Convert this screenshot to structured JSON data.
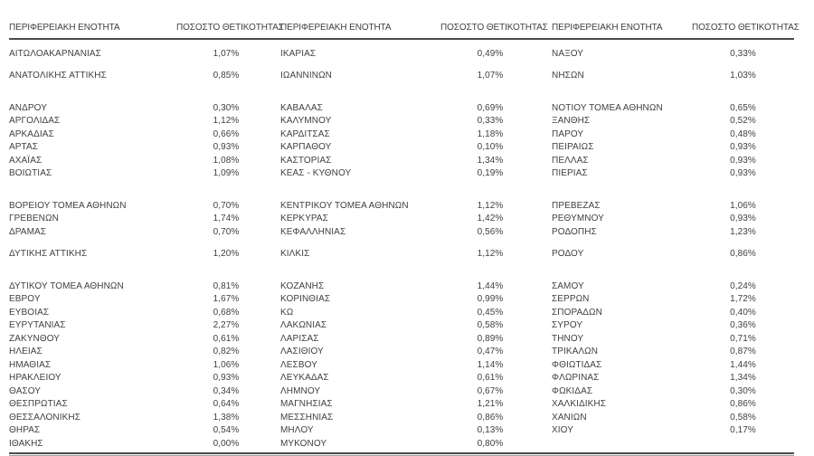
{
  "colors": {
    "text": "#3f3f3f",
    "rule_dark": "#4b4b4b",
    "rule_light": "#9e9e9e",
    "background": "#ffffff"
  },
  "table": {
    "headers": [
      "ΠΕΡΙΦΕΡΕΙΑΚΗ ΕΝΟΤΗΤΑ",
      "ΠΟΣΟΣΤΟ ΘΕΤΙΚΟΤΗΤΑΣ",
      "ΠΕΡΙΦΕΡΕΙΑΚΗ ΕΝΟΤΗΤΑ",
      "ΠΟΣΟΣΤΟ ΘΕΤΙΚΟΤΗΤΑΣ",
      "ΠΕΡΙΦΕΡΕΙΑΚΗ ΕΝΟΤΗΤΑ",
      "ΠΟΣΟΣΤΟ ΘΕΤΙΚΟΤΗΤΑΣ"
    ],
    "rows": [
      {
        "gap": 0,
        "cells": [
          "ΑΙΤΩΛΟΑΚΑΡΝΑΝΙΑΣ",
          "1,07%",
          "ΙΚΑΡΙΑΣ",
          "0,49%",
          "ΝΑΞΟΥ",
          "0,33%"
        ]
      },
      {
        "gap": 1,
        "cells": [
          "ΑΝΑΤΟΛΙΚΗΣ ΑΤΤΙΚΗΣ",
          "0,85%",
          "ΙΩΑΝΝΙΝΩΝ",
          "1,07%",
          "ΝΗΣΩΝ",
          "1,03%"
        ]
      },
      {
        "gap": 2,
        "cells": [
          "ΑΝΔΡΟΥ",
          "0,30%",
          "ΚΑΒΑΛΑΣ",
          "0,69%",
          "ΝΟΤΙΟΥ ΤΟΜΕΑ ΑΘΗΝΩΝ",
          "0,65%"
        ]
      },
      {
        "gap": 0,
        "cells": [
          "ΑΡΓΟΛΙΔΑΣ",
          "1,12%",
          "ΚΑΛΥΜΝΟΥ",
          "0,33%",
          "ΞΑΝΘΗΣ",
          "0,52%"
        ]
      },
      {
        "gap": 0,
        "cells": [
          "ΑΡΚΑΔΙΑΣ",
          "0,66%",
          "ΚΑΡΔΙΤΣΑΣ",
          "1,18%",
          "ΠΑΡΟΥ",
          "0,48%"
        ]
      },
      {
        "gap": 0,
        "cells": [
          "ΑΡΤΑΣ",
          "0,93%",
          "ΚΑΡΠΑΘΟΥ",
          "0,10%",
          "ΠΕΙΡΑΙΩΣ",
          "0,93%"
        ]
      },
      {
        "gap": 0,
        "cells": [
          "ΑΧΑΪΑΣ",
          "1,08%",
          "ΚΑΣΤΟΡΙΑΣ",
          "1,34%",
          "ΠΕΛΛΑΣ",
          "0,93%"
        ]
      },
      {
        "gap": 0,
        "cells": [
          "ΒΟΙΩΤΙΑΣ",
          "1,09%",
          "ΚΕΑΣ - ΚΥΘΝΟΥ",
          "0,19%",
          "ΠΙΕΡΙΑΣ",
          "0,93%"
        ]
      },
      {
        "gap": 2,
        "cells": [
          "ΒΟΡΕΙΟΥ ΤΟΜΕΑ ΑΘΗΝΩΝ",
          "0,70%",
          "ΚΕΝΤΡΙΚΟΥ ΤΟΜΕΑ ΑΘΗΝΩΝ",
          "1,12%",
          "ΠΡΕΒΕΖΑΣ",
          "1,06%"
        ]
      },
      {
        "gap": 0,
        "cells": [
          "ΓΡΕΒΕΝΩΝ",
          "1,74%",
          "ΚΕΡΚΥΡΑΣ",
          "1,42%",
          "ΡΕΘΥΜΝΟΥ",
          "0,93%"
        ]
      },
      {
        "gap": 0,
        "cells": [
          "ΔΡΑΜΑΣ",
          "0,70%",
          "ΚΕΦΑΛΛΗΝΙΑΣ",
          "0,56%",
          "ΡΟΔΟΠΗΣ",
          "1,23%"
        ]
      },
      {
        "gap": 1,
        "cells": [
          "ΔΥΤΙΚΗΣ ΑΤΤΙΚΗΣ",
          "1,20%",
          "ΚΙΛΚΙΣ",
          "1,12%",
          "ΡΟΔΟΥ",
          "0,86%"
        ]
      },
      {
        "gap": 2,
        "cells": [
          "ΔΥΤΙΚΟΥ ΤΟΜΕΑ ΑΘΗΝΩΝ",
          "0,81%",
          "ΚΟΖΑΝΗΣ",
          "1,44%",
          "ΣΑΜΟΥ",
          "0,24%"
        ]
      },
      {
        "gap": 0,
        "cells": [
          "ΕΒΡΟΥ",
          "1,67%",
          "ΚΟΡΙΝΘΙΑΣ",
          "0,99%",
          "ΣΕΡΡΩΝ",
          "1,72%"
        ]
      },
      {
        "gap": 0,
        "cells": [
          "ΕΥΒΟΙΑΣ",
          "0,68%",
          "ΚΩ",
          "0,45%",
          "ΣΠΟΡΑΔΩΝ",
          "0,40%"
        ]
      },
      {
        "gap": 0,
        "cells": [
          "ΕΥΡΥΤΑΝΙΑΣ",
          "2,27%",
          "ΛΑΚΩΝΙΑΣ",
          "0,58%",
          "ΣΥΡΟΥ",
          "0,36%"
        ]
      },
      {
        "gap": 0,
        "cells": [
          "ΖΑΚΥΝΘΟΥ",
          "0,61%",
          "ΛΑΡΙΣΑΣ",
          "0,89%",
          "ΤΗΝΟΥ",
          "0,71%"
        ]
      },
      {
        "gap": 0,
        "cells": [
          "ΗΛΕΙΑΣ",
          "0,82%",
          "ΛΑΣΙΘΙΟΥ",
          "0,47%",
          "ΤΡΙΚΑΛΩΝ",
          "0,87%"
        ]
      },
      {
        "gap": 0,
        "cells": [
          "ΗΜΑΘΙΑΣ",
          "1,06%",
          "ΛΕΣΒΟΥ",
          "1,14%",
          "ΦΘΙΩΤΙΔΑΣ",
          "1,44%"
        ]
      },
      {
        "gap": 0,
        "cells": [
          "ΗΡΑΚΛΕΙΟΥ",
          "0,93%",
          "ΛΕΥΚΑΔΑΣ",
          "0,61%",
          "ΦΛΩΡΙΝΑΣ",
          "1,34%"
        ]
      },
      {
        "gap": 0,
        "cells": [
          "ΘΑΣΟΥ",
          "0,34%",
          "ΛΗΜΝΟΥ",
          "0,67%",
          "ΦΩΚΙΔΑΣ",
          "0,30%"
        ]
      },
      {
        "gap": 0,
        "cells": [
          "ΘΕΣΠΡΩΤΙΑΣ",
          "0,64%",
          "ΜΑΓΝΗΣΙΑΣ",
          "1,21%",
          "ΧΑΛΚΙΔΙΚΗΣ",
          "0,86%"
        ]
      },
      {
        "gap": 0,
        "cells": [
          "ΘΕΣΣΑΛΟΝΙΚΗΣ",
          "1,38%",
          "ΜΕΣΣΗΝΙΑΣ",
          "0,86%",
          "ΧΑΝΙΩΝ",
          "0,58%"
        ]
      },
      {
        "gap": 0,
        "cells": [
          "ΘΗΡΑΣ",
          "0,54%",
          "ΜΗΛΟΥ",
          "0,13%",
          "ΧΙΟΥ",
          "0,17%"
        ]
      },
      {
        "gap": 0,
        "cells": [
          "ΙΘΑΚΗΣ",
          "0,00%",
          "ΜΥΚΟΝΟΥ",
          "0,80%",
          "",
          ""
        ]
      }
    ]
  }
}
